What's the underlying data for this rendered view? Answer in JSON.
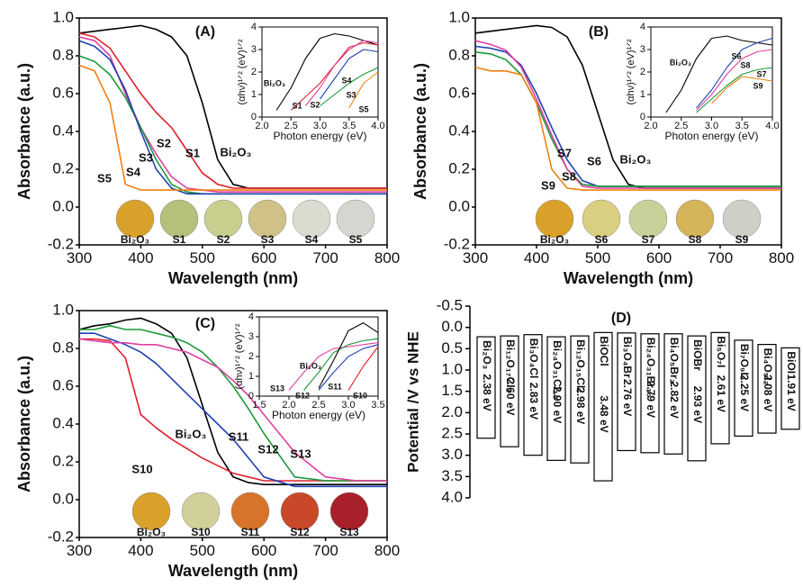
{
  "chart_data": [
    {
      "type": "line",
      "label": "(A)",
      "xlabel": "Wavelength (nm)",
      "ylabel": "Absorbance (a.u.)",
      "x": [
        300,
        325,
        350,
        375,
        400,
        425,
        450,
        475,
        500,
        525,
        550,
        575,
        600,
        650,
        700,
        750,
        800
      ],
      "xlim": [
        300,
        800
      ],
      "xticks": [
        300,
        400,
        500,
        600,
        700,
        800
      ],
      "ylim": [
        -0.2,
        1.0
      ],
      "yticks": [
        -0.2,
        {
          "value": 0,
          "label": "0.0"
        },
        0.2,
        0.4,
        0.6,
        0.8,
        {
          "value": 1,
          "label": "1.0"
        }
      ],
      "series": [
        {
          "name": "Bi₂O₃",
          "color": "#000000",
          "values": [
            0.92,
            0.93,
            0.94,
            0.95,
            0.96,
            0.94,
            0.9,
            0.8,
            0.55,
            0.25,
            0.12,
            0.1,
            0.1,
            0.1,
            0.1,
            0.1,
            0.1
          ]
        },
        {
          "name": "S1",
          "color": "#e0202a",
          "values": [
            0.92,
            0.9,
            0.84,
            0.72,
            0.6,
            0.5,
            0.42,
            0.3,
            0.18,
            0.12,
            0.1,
            0.1,
            0.1,
            0.1,
            0.1,
            0.1,
            0.1
          ]
        },
        {
          "name": "S2",
          "color": "#e040a0",
          "values": [
            0.9,
            0.88,
            0.8,
            0.6,
            0.42,
            0.28,
            0.16,
            0.1,
            0.09,
            0.08,
            0.08,
            0.08,
            0.08,
            0.08,
            0.08,
            0.08,
            0.08
          ]
        },
        {
          "name": "S3",
          "color": "#1a9a3a",
          "values": [
            0.8,
            0.77,
            0.7,
            0.58,
            0.42,
            0.25,
            0.12,
            0.08,
            0.07,
            0.07,
            0.07,
            0.07,
            0.07,
            0.07,
            0.07,
            0.07,
            0.07
          ]
        },
        {
          "name": "S4",
          "color": "#2040b0",
          "values": [
            0.88,
            0.85,
            0.78,
            0.62,
            0.4,
            0.2,
            0.1,
            0.07,
            0.07,
            0.07,
            0.07,
            0.07,
            0.07,
            0.07,
            0.07,
            0.07,
            0.07
          ]
        },
        {
          "name": "S5",
          "color": "#f08010",
          "values": [
            0.75,
            0.72,
            0.55,
            0.12,
            0.09,
            0.09,
            0.09,
            0.09,
            0.09,
            0.09,
            0.09,
            0.09,
            0.09,
            0.09,
            0.09,
            0.09,
            0.09
          ]
        }
      ],
      "samples": [
        {
          "name": "Bi₂O₃",
          "color": "#d9a12a"
        },
        {
          "name": "S1",
          "color": "#b5c07a"
        },
        {
          "name": "S2",
          "color": "#c8cf8e"
        },
        {
          "name": "S3",
          "color": "#cfc187"
        },
        {
          "name": "S4",
          "color": "#d9ddd0"
        },
        {
          "name": "S5",
          "color": "#d4d6d0"
        }
      ],
      "inset": {
        "xlabel": "Photon energy (eV)",
        "ylabel": "(αhν)¹ᐟ² (eV)¹ᐟ²",
        "x": [
          2.0,
          2.25,
          2.5,
          2.75,
          3.0,
          3.25,
          3.5,
          3.75,
          4.0
        ],
        "xlim": [
          2.0,
          4.0
        ],
        "xticks": [
          {
            "value": 2,
            "label": "2.0"
          },
          2.5,
          {
            "value": 3,
            "label": "3.0"
          },
          3.5,
          {
            "value": 4,
            "label": "4.0"
          }
        ],
        "ylim": [
          0,
          4
        ],
        "yticks": [
          0,
          1,
          2,
          3,
          4
        ],
        "series": [
          {
            "name": "Bi₂O₃",
            "color": "#000000",
            "values": [
              null,
              0.3,
              1.3,
              2.6,
              3.5,
              3.7,
              3.6,
              3.4,
              3.2
            ]
          },
          {
            "name": "S1",
            "color": "#e0202a",
            "values": [
              null,
              null,
              0.3,
              0.9,
              1.5,
              2.3,
              3.1,
              3.3,
              3.2
            ]
          },
          {
            "name": "S2",
            "color": "#e040a0",
            "values": [
              null,
              null,
              null,
              0.5,
              1.3,
              2.3,
              3.0,
              3.4,
              3.3
            ]
          },
          {
            "name": "S4",
            "color": "#2040b0",
            "values": [
              null,
              null,
              null,
              null,
              0.8,
              1.7,
              2.6,
              3.0,
              2.9
            ]
          },
          {
            "name": "S3",
            "color": "#1a9a3a",
            "values": [
              null,
              null,
              null,
              null,
              0.5,
              1.0,
              1.5,
              1.9,
              2.2
            ]
          },
          {
            "name": "S5",
            "color": "#f08010",
            "values": [
              null,
              null,
              null,
              null,
              null,
              null,
              0.4,
              1.5,
              2.0
            ]
          }
        ]
      }
    },
    {
      "type": "line",
      "label": "(B)",
      "xlabel": "Wavelength (nm)",
      "ylabel": "Absorbance (a.u.)",
      "x": [
        300,
        325,
        350,
        375,
        400,
        425,
        450,
        475,
        500,
        525,
        550,
        575,
        600,
        650,
        700,
        750,
        800
      ],
      "xlim": [
        300,
        800
      ],
      "xticks": [
        300,
        400,
        500,
        600,
        700,
        800
      ],
      "ylim": [
        -0.2,
        1.0
      ],
      "yticks": [
        -0.2,
        {
          "value": 0,
          "label": "0.0"
        },
        0.2,
        0.4,
        0.6,
        0.8,
        {
          "value": 1,
          "label": "1.0"
        }
      ],
      "series": [
        {
          "name": "Bi₂O₃",
          "color": "#000000",
          "values": [
            0.92,
            0.93,
            0.94,
            0.95,
            0.96,
            0.95,
            0.9,
            0.75,
            0.5,
            0.25,
            0.12,
            0.1,
            0.1,
            0.1,
            0.1,
            0.1,
            0.1
          ]
        },
        {
          "name": "S6",
          "color": "#2040b0",
          "values": [
            0.85,
            0.84,
            0.82,
            0.75,
            0.6,
            0.42,
            0.25,
            0.14,
            0.11,
            0.11,
            0.11,
            0.11,
            0.11,
            0.11,
            0.11,
            0.11,
            0.11
          ]
        },
        {
          "name": "S7",
          "color": "#1a9a3a",
          "values": [
            0.82,
            0.81,
            0.78,
            0.7,
            0.55,
            0.36,
            0.2,
            0.12,
            0.11,
            0.11,
            0.11,
            0.11,
            0.11,
            0.11,
            0.11,
            0.11,
            0.11
          ]
        },
        {
          "name": "S8",
          "color": "#e040a0",
          "values": [
            0.88,
            0.86,
            0.83,
            0.74,
            0.57,
            0.38,
            0.2,
            0.11,
            0.1,
            0.1,
            0.1,
            0.1,
            0.1,
            0.1,
            0.1,
            0.1,
            0.1
          ]
        },
        {
          "name": "S9",
          "color": "#f08010",
          "values": [
            0.74,
            0.72,
            0.72,
            0.7,
            0.55,
            0.2,
            0.1,
            0.09,
            0.09,
            0.09,
            0.09,
            0.09,
            0.09,
            0.09,
            0.09,
            0.09,
            0.09
          ]
        }
      ],
      "samples": [
        {
          "name": "Bi₂O₃",
          "color": "#d9a12a"
        },
        {
          "name": "S6",
          "color": "#d9cf80"
        },
        {
          "name": "S7",
          "color": "#c9d09a"
        },
        {
          "name": "S8",
          "color": "#d6b45a"
        },
        {
          "name": "S9",
          "color": "#cfcfc8"
        }
      ],
      "inset": {
        "xlabel": "Photon energy (eV)",
        "ylabel": "(αhν)¹ᐟ² (eV)¹ᐟ²",
        "x": [
          2.0,
          2.25,
          2.5,
          2.75,
          3.0,
          3.25,
          3.5,
          3.75,
          4.0
        ],
        "xlim": [
          2.0,
          4.0
        ],
        "xticks": [
          {
            "value": 2,
            "label": "2.0"
          },
          2.5,
          {
            "value": 3,
            "label": "3.0"
          },
          3.5,
          {
            "value": 4,
            "label": "4.0"
          }
        ],
        "ylim": [
          0,
          4
        ],
        "yticks": [
          0,
          1,
          2,
          3,
          4
        ],
        "series": [
          {
            "name": "Bi₂O₃",
            "color": "#000000",
            "values": [
              null,
              0.2,
              1.2,
              2.6,
              3.5,
              3.6,
              3.4,
              3.3,
              3.2
            ]
          },
          {
            "name": "S6",
            "color": "#2040b0",
            "values": [
              null,
              null,
              null,
              0.4,
              1.2,
              2.2,
              3.0,
              3.3,
              3.5
            ]
          },
          {
            "name": "S8",
            "color": "#e040a0",
            "values": [
              null,
              null,
              null,
              0.3,
              1.0,
              1.9,
              2.6,
              2.9,
              3.0
            ]
          },
          {
            "name": "S7",
            "color": "#1a9a3a",
            "values": [
              null,
              null,
              null,
              0.2,
              0.8,
              1.4,
              1.9,
              2.1,
              2.2
            ]
          },
          {
            "name": "S9",
            "color": "#f08010",
            "values": [
              null,
              null,
              null,
              null,
              0.6,
              1.3,
              1.8,
              1.7,
              1.6
            ]
          }
        ]
      }
    },
    {
      "type": "line",
      "label": "(C)",
      "xlabel": "Wavelength (nm)",
      "ylabel": "Absorbance (a.u.)",
      "x": [
        300,
        325,
        350,
        375,
        400,
        425,
        450,
        475,
        500,
        525,
        550,
        575,
        600,
        650,
        700,
        750,
        800
      ],
      "xlim": [
        300,
        800
      ],
      "xticks": [
        300,
        400,
        500,
        600,
        700,
        800
      ],
      "ylim": [
        -0.2,
        1.0
      ],
      "yticks": [
        -0.2,
        {
          "value": 0,
          "label": "0.0"
        },
        0.2,
        0.4,
        0.6,
        0.8,
        {
          "value": 1,
          "label": "1.0"
        }
      ],
      "series": [
        {
          "name": "Bi₂O₃",
          "color": "#000000",
          "values": [
            0.9,
            0.92,
            0.93,
            0.95,
            0.96,
            0.93,
            0.88,
            0.75,
            0.5,
            0.25,
            0.12,
            0.09,
            0.08,
            0.08,
            0.08,
            0.08,
            0.08
          ]
        },
        {
          "name": "S10",
          "color": "#e0202a",
          "values": [
            0.85,
            0.85,
            0.84,
            0.75,
            0.45,
            0.38,
            0.32,
            0.27,
            0.22,
            0.18,
            0.14,
            0.12,
            0.1,
            0.1,
            0.1,
            0.1,
            0.1
          ]
        },
        {
          "name": "S11",
          "color": "#2040b0",
          "values": [
            0.88,
            0.88,
            0.85,
            0.82,
            0.78,
            0.72,
            0.64,
            0.56,
            0.48,
            0.4,
            0.32,
            0.22,
            0.12,
            0.07,
            0.07,
            0.07,
            0.07
          ]
        },
        {
          "name": "S12",
          "color": "#1a9a3a",
          "values": [
            0.9,
            0.9,
            0.92,
            0.9,
            0.9,
            0.88,
            0.86,
            0.83,
            0.78,
            0.7,
            0.6,
            0.48,
            0.35,
            0.12,
            0.1,
            0.1,
            0.1
          ]
        },
        {
          "name": "S13",
          "color": "#e040a0",
          "values": [
            0.85,
            0.84,
            0.83,
            0.83,
            0.82,
            0.82,
            0.8,
            0.78,
            0.74,
            0.7,
            0.63,
            0.55,
            0.45,
            0.25,
            0.12,
            0.1,
            0.1
          ]
        }
      ],
      "samples": [
        {
          "name": "Bi₂O₃",
          "color": "#d9a12a"
        },
        {
          "name": "S10",
          "color": "#d2d09a"
        },
        {
          "name": "S11",
          "color": "#d8742a"
        },
        {
          "name": "S12",
          "color": "#c9482a"
        },
        {
          "name": "S13",
          "color": "#a8202a"
        }
      ],
      "inset": {
        "xlabel": "Photon energy (eV)",
        "ylabel": "(αhν)¹ᐟ² (eV)¹ᐟ²",
        "x": [
          1.5,
          1.75,
          2.0,
          2.25,
          2.5,
          2.75,
          3.0,
          3.25,
          3.5
        ],
        "xlim": [
          1.5,
          3.5
        ],
        "xticks": [
          1.5,
          {
            "value": 2,
            "label": "2.0"
          },
          2.5,
          {
            "value": 3,
            "label": "3.0"
          },
          3.5
        ],
        "ylim": [
          0,
          4
        ],
        "yticks": [
          0,
          1,
          2,
          3,
          4
        ],
        "series": [
          {
            "name": "S13",
            "color": "#e040a0",
            "values": [
              null,
              null,
              0.3,
              1.2,
              2.0,
              2.4,
              2.5,
              2.6,
              2.7
            ]
          },
          {
            "name": "S12",
            "color": "#1a9a3a",
            "values": [
              null,
              null,
              null,
              0.3,
              1.2,
              2.2,
              2.6,
              2.8,
              2.9
            ]
          },
          {
            "name": "Bi₂O₃",
            "color": "#000000",
            "values": [
              null,
              null,
              null,
              null,
              0.4,
              1.8,
              3.3,
              3.7,
              3.2
            ]
          },
          {
            "name": "S11",
            "color": "#2040b0",
            "values": [
              null,
              null,
              null,
              null,
              0.3,
              1.2,
              2.0,
              2.4,
              2.6
            ]
          },
          {
            "name": "S10",
            "color": "#e0202a",
            "values": [
              null,
              null,
              null,
              null,
              null,
              null,
              0.3,
              1.5,
              2.5
            ]
          }
        ]
      }
    },
    {
      "type": "range_bar",
      "label": "(D)",
      "ylabel": "Potential /V vs NHE",
      "y_inverted": true,
      "ylim": [
        -0.5,
        4.0
      ],
      "yticks": [
        -0.5,
        {
          "value": 0,
          "label": "0.0"
        },
        0.5,
        {
          "value": 1,
          "label": "1.0"
        },
        1.5,
        {
          "value": 2,
          "label": "2.0"
        },
        2.5,
        {
          "value": 3,
          "label": "3.0"
        },
        3.5,
        {
          "value": 4,
          "label": "4.0"
        }
      ],
      "categories": [
        "Bi₂O₃",
        "Bi₁₂O₁₇Cl₂",
        "Bi₃O₄Cl",
        "Bi₂₄O₃₁Cl₁₀",
        "Bi₁₂O₁₅Cl₆",
        "BiOCl",
        "Bi₃O₄Br",
        "Bi₂₄O₃₁Br₁₀",
        "Bi₄O₅Br₂",
        "BiOBr",
        "Bi₅O₇I",
        "Bi₇O₉I₃",
        "Bi₄O₅I₂",
        "BiOI"
      ],
      "starts": [
        0.22,
        0.2,
        0.17,
        0.22,
        0.2,
        0.12,
        0.13,
        0.15,
        0.15,
        0.2,
        0.12,
        0.3,
        0.4,
        0.48
      ],
      "values": [
        2.38,
        2.6,
        2.83,
        2.9,
        2.98,
        3.48,
        2.76,
        2.79,
        2.82,
        2.93,
        2.61,
        2.25,
        2.08,
        1.91
      ],
      "value_labels": [
        "2.38 eV",
        "2.60 eV",
        "2.83 eV",
        "2.90 eV",
        "2.98 eV",
        "3.48 eV",
        "2.76 eV",
        "2.79 eV",
        "2.82 eV",
        "2.93 eV",
        "2.61 eV",
        "2.25 eV",
        "2.08 eV",
        "1.91 eV"
      ],
      "color": "#ffffff"
    }
  ]
}
